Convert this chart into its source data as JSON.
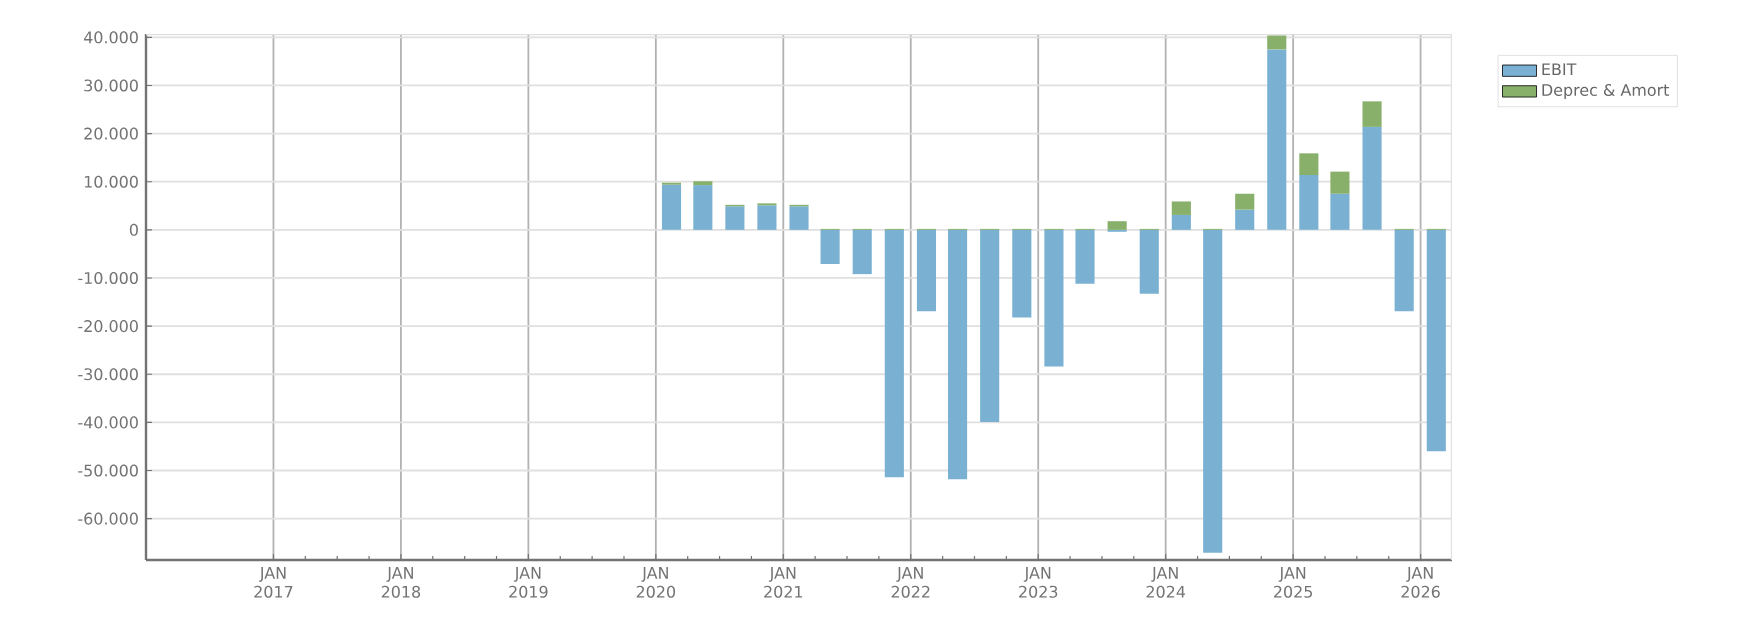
{
  "chart_data": {
    "type": "bar",
    "stacked": true,
    "x": [
      "2020-02-15",
      "2020-05-15",
      "2020-08-15",
      "2020-11-15",
      "2021-02-15",
      "2021-05-15",
      "2021-08-15",
      "2021-11-15",
      "2022-02-15",
      "2022-05-15",
      "2022-08-15",
      "2022-11-15",
      "2023-02-15",
      "2023-05-15",
      "2023-08-15",
      "2023-11-15",
      "2024-02-15",
      "2024-05-15",
      "2024-08-15",
      "2024-11-15",
      "2025-02-15",
      "2025-05-15",
      "2025-08-15",
      "2025-11-15",
      "2026-02-15"
    ],
    "series": [
      {
        "name": "EBIT",
        "color": "#7ab1d3",
        "values": [
          9400,
          9300,
          4900,
          5100,
          4900,
          -7100,
          -9200,
          -51400,
          -16900,
          -51800,
          -39900,
          -18200,
          -28400,
          -11200,
          -400,
          -13300,
          3100,
          -67100,
          4200,
          37500,
          11400,
          7500,
          21400,
          -16900,
          -46000
        ]
      },
      {
        "name": "Deprec & Amort",
        "color": "#88b06a",
        "values": [
          400,
          800,
          300,
          400,
          300,
          200,
          200,
          200,
          200,
          200,
          200,
          200,
          200,
          200,
          1800,
          200,
          2800,
          200,
          3300,
          2900,
          4500,
          4600,
          5300,
          200,
          200
        ]
      }
    ],
    "xlim": [
      "2016-01-01",
      "2026-04-01"
    ],
    "xticks": [
      {
        "value": "2017-01-01",
        "label": "JAN 2017"
      },
      {
        "value": "2018-01-01",
        "label": "JAN 2018"
      },
      {
        "value": "2019-01-01",
        "label": "JAN 2019"
      },
      {
        "value": "2020-01-01",
        "label": "JAN 2020"
      },
      {
        "value": "2021-01-01",
        "label": "JAN 2021"
      },
      {
        "value": "2022-01-01",
        "label": "JAN 2022"
      },
      {
        "value": "2023-01-01",
        "label": "JAN 2023"
      },
      {
        "value": "2024-01-01",
        "label": "JAN 2024"
      },
      {
        "value": "2025-01-01",
        "label": "JAN 2025"
      },
      {
        "value": "2026-01-01",
        "label": "JAN 2026"
      }
    ],
    "ylim": [
      -68600,
      40700
    ],
    "yticks": [
      {
        "value": 40000,
        "label": "40.000"
      },
      {
        "value": 30000,
        "label": "30.000"
      },
      {
        "value": 20000,
        "label": "20.000"
      },
      {
        "value": 10000,
        "label": "10.000"
      },
      {
        "value": 0,
        "label": "0"
      },
      {
        "value": -10000,
        "label": "-10.000"
      },
      {
        "value": -20000,
        "label": "-20.000"
      },
      {
        "value": -30000,
        "label": "-30.000"
      },
      {
        "value": -40000,
        "label": "-40.000"
      },
      {
        "value": -50000,
        "label": "-50.000"
      },
      {
        "value": -60000,
        "label": "-60.000"
      }
    ],
    "grid": true,
    "legend": "top right"
  }
}
